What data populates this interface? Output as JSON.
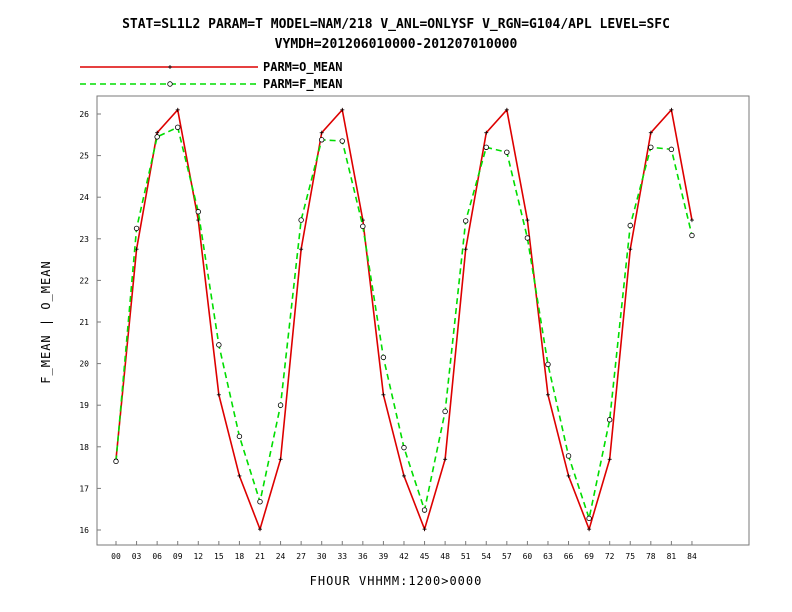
{
  "chart_data": {
    "type": "line",
    "title": "STAT=SL1L2 PARAM=T MODEL=NAM/218 V_ANL=ONLYSF V_RGN=G104/APL LEVEL=SFC",
    "subtitle": "VYMDH=201206010000-201207010000",
    "xlabel": "FHOUR VHHMM:1200>0000",
    "ylabel": "F_MEAN | O_MEAN",
    "x": [
      "00",
      "03",
      "06",
      "09",
      "12",
      "15",
      "18",
      "21",
      "24",
      "27",
      "30",
      "33",
      "36",
      "39",
      "42",
      "45",
      "48",
      "51",
      "54",
      "57",
      "60",
      "63",
      "66",
      "69",
      "72",
      "75",
      "78",
      "81",
      "84"
    ],
    "ylim": [
      15.8,
      26.1
    ],
    "yticks": [
      16,
      17,
      18,
      19,
      20,
      21,
      22,
      23,
      24,
      25,
      26
    ],
    "grid": false,
    "legend_position": "top-left",
    "series": [
      {
        "name": "PARM=O_MEAN",
        "color": "#dd0000",
        "dash": "solid",
        "marker": "plus",
        "values": [
          17.7,
          22.75,
          25.55,
          26.1,
          23.45,
          19.25,
          17.3,
          16.02,
          17.7,
          22.75,
          25.55,
          26.1,
          23.45,
          19.25,
          17.3,
          16.02,
          17.7,
          22.75,
          25.55,
          26.1,
          23.45,
          19.25,
          17.3,
          16.02,
          17.7,
          22.75,
          25.55,
          26.1,
          23.45
        ]
      },
      {
        "name": "PARM=F_MEAN",
        "color": "#00dd00",
        "dash": "dashed",
        "marker": "circle",
        "values": [
          17.65,
          23.25,
          25.45,
          25.68,
          23.65,
          20.45,
          18.25,
          16.68,
          19.0,
          23.45,
          25.38,
          25.35,
          23.3,
          20.15,
          17.98,
          16.48,
          18.85,
          23.43,
          25.2,
          25.08,
          23.02,
          19.98,
          17.78,
          16.28,
          18.65,
          23.32,
          25.2,
          25.15,
          23.08
        ]
      }
    ]
  }
}
